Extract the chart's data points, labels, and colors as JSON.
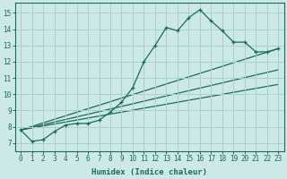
{
  "title": "",
  "xlabel": "Humidex (Indice chaleur)",
  "ylabel": "",
  "bg_color": "#cce8e8",
  "line_color": "#1a6b5a",
  "grid_color": "#aacece",
  "xlim": [
    -0.5,
    23.5
  ],
  "ylim": [
    6.5,
    15.6
  ],
  "xticks": [
    0,
    1,
    2,
    3,
    4,
    5,
    6,
    7,
    8,
    9,
    10,
    11,
    12,
    13,
    14,
    15,
    16,
    17,
    18,
    19,
    20,
    21,
    22,
    23
  ],
  "yticks": [
    7,
    8,
    9,
    10,
    11,
    12,
    13,
    14,
    15
  ],
  "series1_x": [
    0,
    1,
    2,
    3,
    4,
    5,
    6,
    7,
    8,
    9,
    10,
    11,
    12,
    13,
    14,
    15,
    16,
    17,
    18,
    19,
    20,
    21,
    22,
    23
  ],
  "series1_y": [
    7.8,
    7.1,
    7.2,
    7.7,
    8.1,
    8.2,
    8.2,
    8.4,
    8.9,
    9.5,
    10.4,
    12.0,
    13.0,
    14.1,
    13.9,
    14.7,
    15.2,
    14.5,
    13.9,
    13.2,
    13.2,
    12.6,
    12.6,
    12.8
  ],
  "series2_x": [
    0,
    23
  ],
  "series2_y": [
    7.8,
    12.8
  ],
  "series3_x": [
    0,
    23
  ],
  "series3_y": [
    7.8,
    11.5
  ],
  "series4_x": [
    0,
    23
  ],
  "series4_y": [
    7.8,
    10.6
  ]
}
